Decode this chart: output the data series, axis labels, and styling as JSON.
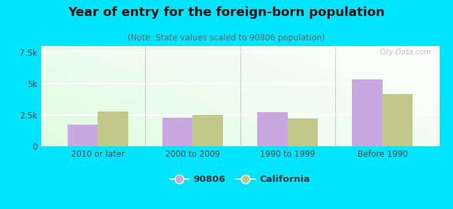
{
  "title": "Year of entry for the foreign-born population",
  "subtitle": "(Note: State values scaled to 90806 population)",
  "categories": [
    "2010 or later",
    "2000 to 2009",
    "1990 to 1999",
    "Before 1990"
  ],
  "values_90806": [
    1750,
    2300,
    2750,
    5350
  ],
  "values_california": [
    2800,
    2480,
    2250,
    4150
  ],
  "color_90806": "#c8a8df",
  "color_california": "#c0c98a",
  "background_color": "#00e5ff",
  "ylim": [
    0,
    8000
  ],
  "yticks": [
    0,
    2500,
    5000,
    7500
  ],
  "ytick_labels": [
    "0",
    "2.5k",
    "5k",
    "7.5k"
  ],
  "legend_label_90806": "90806",
  "legend_label_california": "California",
  "bar_width": 0.32,
  "title_fontsize": 13,
  "subtitle_fontsize": 8.5,
  "watermark": "City-Data.com"
}
